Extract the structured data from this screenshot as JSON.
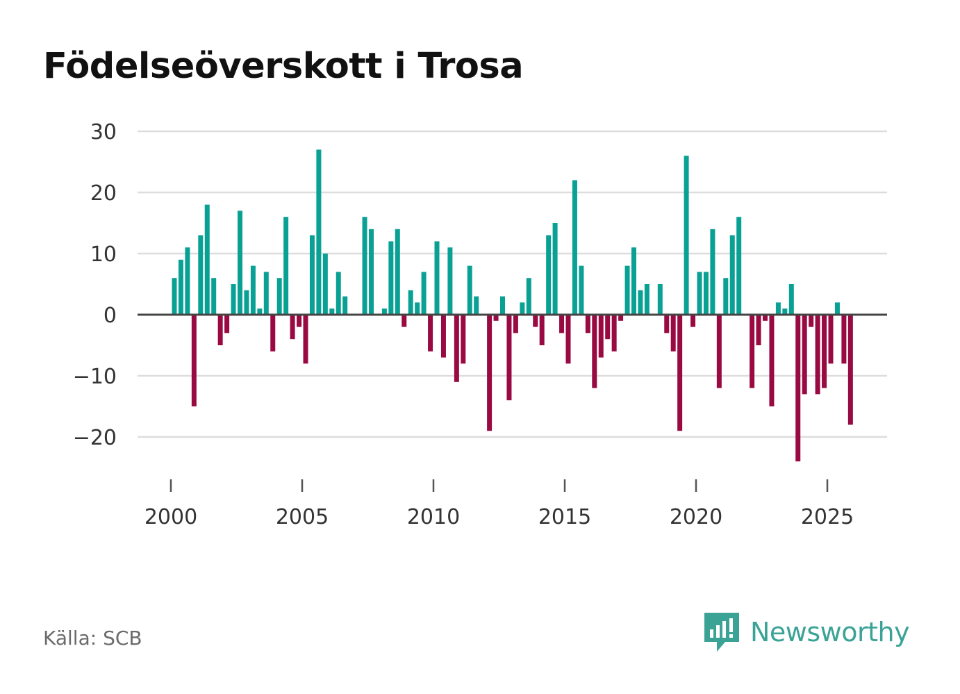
{
  "title": "Födelseöverskott i Trosa",
  "source": "Källa: SCB",
  "brand": {
    "name": "Newsworthy",
    "icon": "newsworthy-logo-icon"
  },
  "colors": {
    "positive": "#0aa195",
    "negative": "#990a42",
    "grid": "#dddddd",
    "zero": "#444444",
    "brand": "#3aa396"
  },
  "chart_data": {
    "type": "bar",
    "title": "Födelseöverskott i Trosa",
    "xlabel": "",
    "ylabel": "",
    "ylim": [
      -25,
      32
    ],
    "yticks": [
      -20,
      -10,
      0,
      10,
      20,
      30
    ],
    "ytick_labels": [
      "−20",
      "−10",
      "0",
      "10",
      "20",
      "30"
    ],
    "xticks": [
      2000,
      2005,
      2010,
      2015,
      2020,
      2025
    ],
    "xtick_labels": [
      "2000",
      "2005",
      "2010",
      "2015",
      "2020",
      "2025"
    ],
    "x_start": 2000,
    "period": "quarter",
    "values": [
      6,
      9,
      11,
      -15,
      13,
      18,
      6,
      -5,
      -3,
      5,
      17,
      4,
      8,
      1,
      7,
      -6,
      6,
      16,
      -4,
      -2,
      -8,
      13,
      27,
      10,
      1,
      7,
      3,
      0,
      0,
      16,
      14,
      0,
      1,
      12,
      14,
      -2,
      4,
      2,
      7,
      -6,
      12,
      -7,
      11,
      -11,
      -8,
      8,
      3,
      0,
      -19,
      -1,
      3,
      -14,
      -3,
      2,
      6,
      -2,
      -5,
      13,
      15,
      -3,
      -8,
      22,
      8,
      -3,
      -12,
      -7,
      -4,
      -6,
      -1,
      8,
      11,
      4,
      5,
      0,
      5,
      -3,
      -6,
      -19,
      26,
      -2,
      7,
      7,
      14,
      -12,
      6,
      13,
      16,
      0,
      -12,
      -5,
      -1,
      -15,
      2,
      1,
      5,
      -24,
      -13,
      -2,
      -13,
      -12,
      -8,
      2,
      -8,
      -18
    ]
  }
}
